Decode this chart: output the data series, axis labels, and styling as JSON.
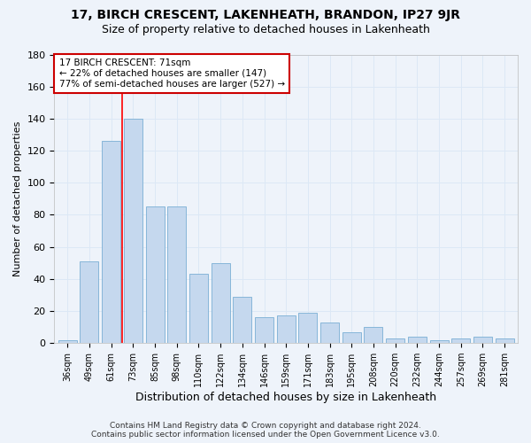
{
  "title": "17, BIRCH CRESCENT, LAKENHEATH, BRANDON, IP27 9JR",
  "subtitle": "Size of property relative to detached houses in Lakenheath",
  "xlabel": "Distribution of detached houses by size in Lakenheath",
  "ylabel": "Number of detached properties",
  "categories": [
    "36sqm",
    "49sqm",
    "61sqm",
    "73sqm",
    "85sqm",
    "98sqm",
    "110sqm",
    "122sqm",
    "134sqm",
    "146sqm",
    "159sqm",
    "171sqm",
    "183sqm",
    "195sqm",
    "208sqm",
    "220sqm",
    "232sqm",
    "244sqm",
    "257sqm",
    "269sqm",
    "281sqm"
  ],
  "values": [
    2,
    51,
    126,
    140,
    85,
    85,
    43,
    50,
    29,
    16,
    17,
    19,
    13,
    7,
    10,
    3,
    4,
    2,
    3,
    4,
    3
  ],
  "bar_color": "#c5d8ee",
  "bar_edge_color": "#7aafd4",
  "red_line_index": 2.5,
  "annotation_lines": [
    "17 BIRCH CRESCENT: 71sqm",
    "← 22% of detached houses are smaller (147)",
    "77% of semi-detached houses are larger (527) →"
  ],
  "annotation_box_color": "#ffffff",
  "annotation_box_edge": "#cc0000",
  "grid_color": "#dce8f5",
  "background_color": "#eef3fa",
  "footer1": "Contains HM Land Registry data © Crown copyright and database right 2024.",
  "footer2": "Contains public sector information licensed under the Open Government Licence v3.0.",
  "ylim": [
    0,
    180
  ],
  "yticks": [
    0,
    20,
    40,
    60,
    80,
    100,
    120,
    140,
    160,
    180
  ],
  "title_fontsize": 10,
  "subtitle_fontsize": 9
}
